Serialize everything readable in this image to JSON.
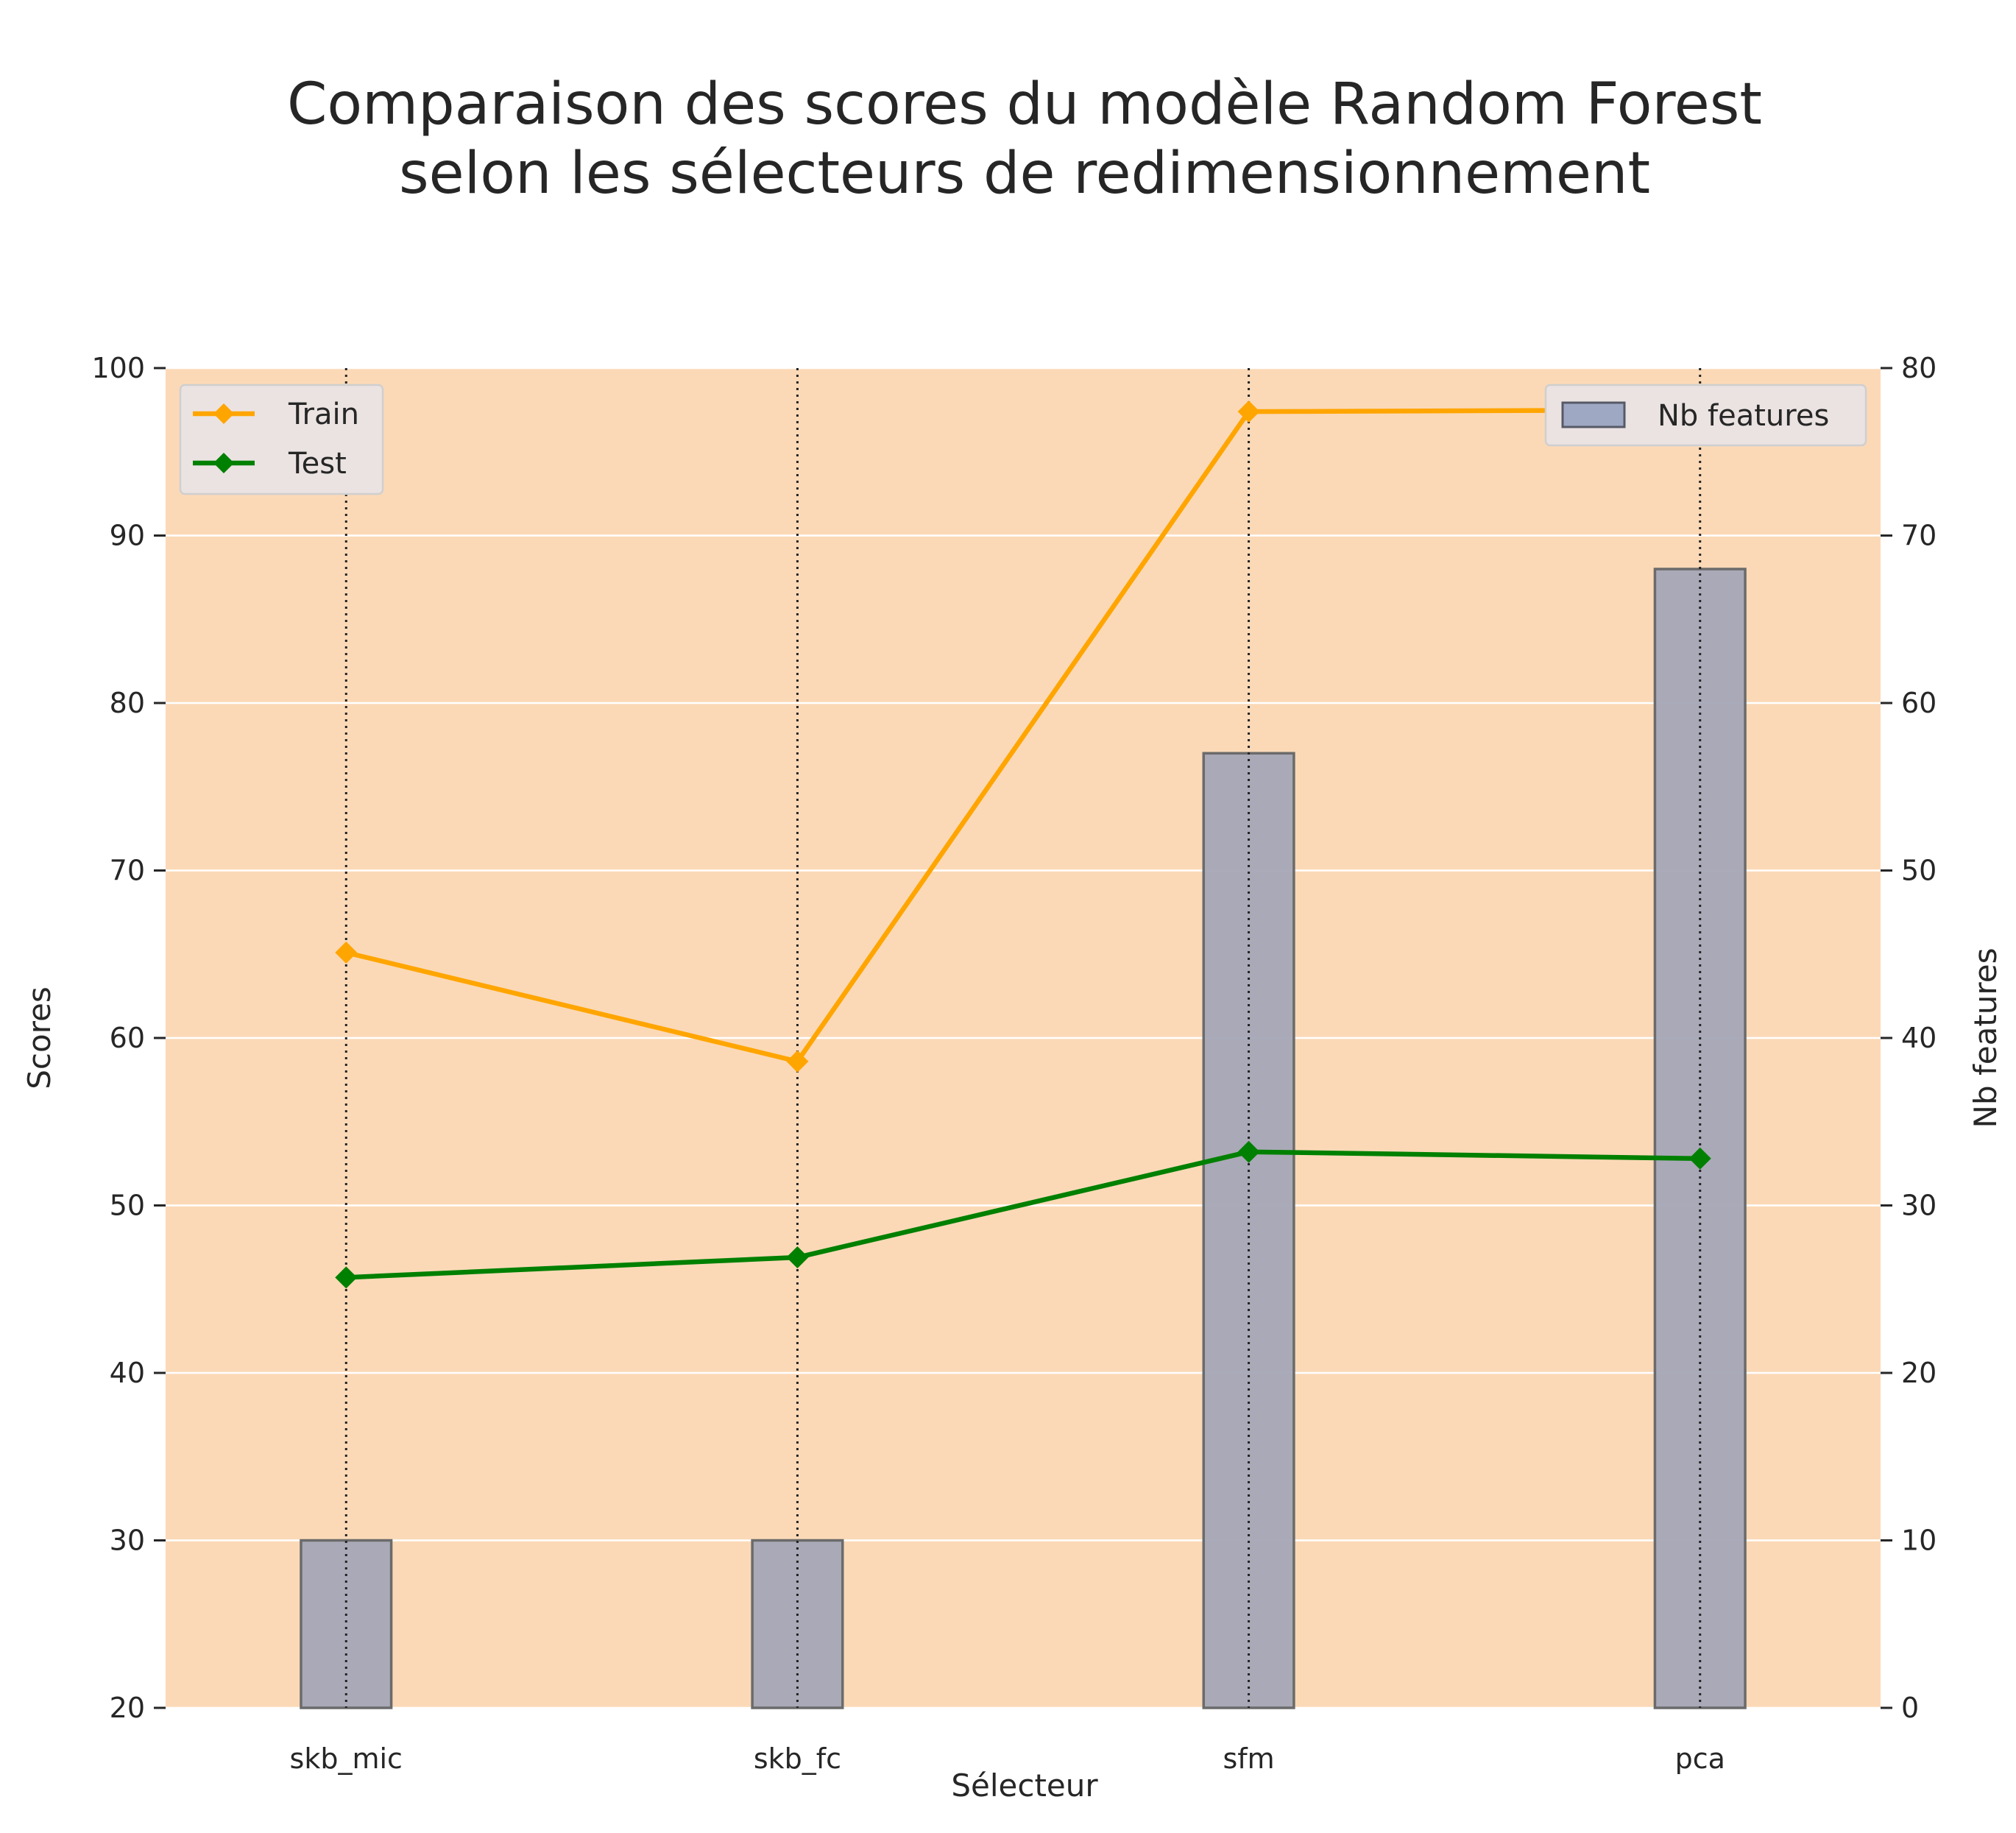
{
  "chart_data": {
    "type": "bar+line",
    "title_lines": [
      "Comparaison des scores du modèle Random Forest",
      "selon les sélecteurs de redimensionnement"
    ],
    "xlabel": "Sélecteur",
    "ylabel_left": "Scores",
    "ylabel_right": "Nb features",
    "categories": [
      "skb_mic",
      "skb_fc",
      "sfm",
      "pca"
    ],
    "ylim_left": [
      20,
      100
    ],
    "yticks_left": [
      20,
      30,
      40,
      50,
      60,
      70,
      80,
      90,
      100
    ],
    "ylim_right": [
      0,
      80
    ],
    "yticks_right": [
      0,
      10,
      20,
      30,
      40,
      50,
      60,
      70,
      80
    ],
    "grid": true,
    "background_color": "#fbd9b7",
    "bars": {
      "name": "Nb features",
      "axis": "right",
      "values": [
        10,
        10,
        57,
        68
      ],
      "color": "#a5a6b6",
      "edge_color": "#6b6b6b"
    },
    "series": [
      {
        "name": "Train",
        "axis": "left",
        "values": [
          65.1,
          58.6,
          97.4,
          97.5
        ],
        "color": "#ffa500",
        "marker": "diamond"
      },
      {
        "name": "Test",
        "axis": "left",
        "values": [
          45.7,
          46.9,
          53.2,
          52.8
        ],
        "color": "#008000",
        "marker": "diamond"
      }
    ],
    "vertical_dotted_lines_at_categories": true,
    "legend_lines_position": "upper-left",
    "legend_bars_position": "upper-right"
  }
}
